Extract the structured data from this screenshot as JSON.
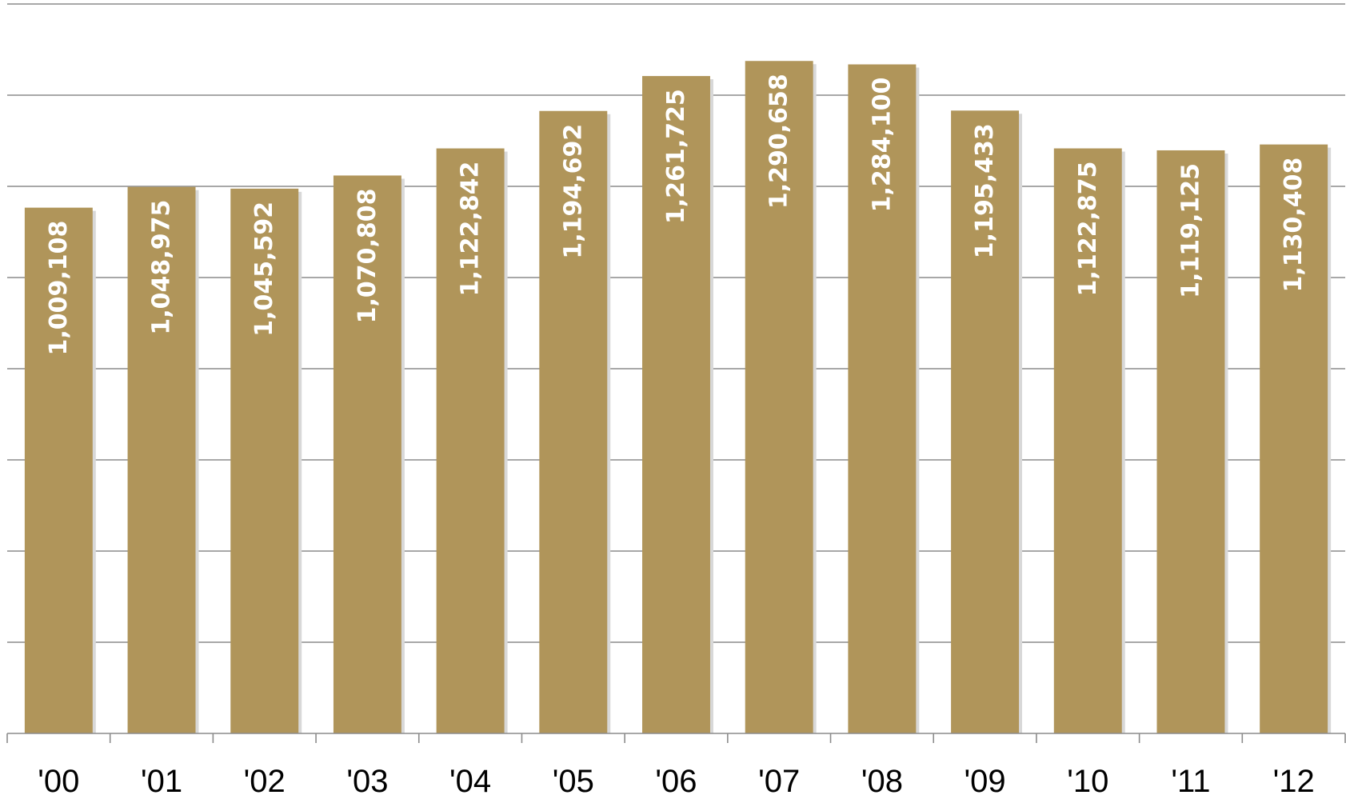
{
  "chart_data": {
    "type": "bar",
    "categories": [
      "'00",
      "'01",
      "'02",
      "'03",
      "'04",
      "'05",
      "'06",
      "'07",
      "'08",
      "'09",
      "'10",
      "'11",
      "'12"
    ],
    "values": [
      1009108,
      1048975,
      1045592,
      1070808,
      1122842,
      1194692,
      1261725,
      1290658,
      1284100,
      1195433,
      1122875,
      1119125,
      1130408
    ],
    "value_labels": [
      "1,009,108",
      "1,048,975",
      "1,045,592",
      "1,070,808",
      "1,122,842",
      "1,194,692",
      "1,261,725",
      "1,290,658",
      "1,284,100",
      "1,195,433",
      "1,122,875",
      "1,119,125",
      "1,130,408"
    ],
    "title": "",
    "xlabel": "",
    "ylabel": "",
    "ylim": [
      0,
      1400000
    ],
    "grid": true,
    "y_tick_step": 175000,
    "y_tick_labels_visible": false,
    "data_labels": "inside-bar-rotated",
    "colors": {
      "bar": "#b0955a",
      "bar_shadow": "#d8d8d8",
      "label": "#ffffff",
      "grid": "#8c8c8c"
    }
  }
}
